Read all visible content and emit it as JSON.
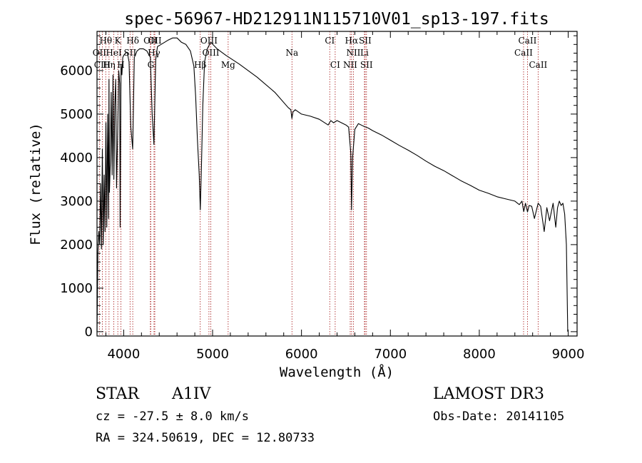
{
  "chart_data": {
    "type": "line",
    "title": "spec-56967-HD212911N115710V01_sp13-197.fits",
    "xlabel": "Wavelength (Å)",
    "ylabel": "Flux (relative)",
    "xlim": [
      3700,
      9100
    ],
    "ylim": [
      -100,
      6900
    ],
    "xticks": [
      4000,
      5000,
      6000,
      7000,
      8000,
      9000
    ],
    "yticks": [
      0,
      1000,
      2000,
      3000,
      4000,
      5000,
      6000
    ],
    "grid": false,
    "series": [
      {
        "name": "flux",
        "x": [
          3700,
          3710,
          3720,
          3730,
          3740,
          3750,
          3760,
          3770,
          3780,
          3790,
          3800,
          3810,
          3820,
          3830,
          3835,
          3840,
          3850,
          3860,
          3870,
          3880,
          3889,
          3900,
          3910,
          3920,
          3933,
          3945,
          3955,
          3960,
          3970,
          3980,
          3990,
          4000,
          4020,
          4040,
          4060,
          4080,
          4101,
          4120,
          4150,
          4180,
          4220,
          4260,
          4300,
          4320,
          4340,
          4360,
          4380,
          4420,
          4460,
          4500,
          4550,
          4600,
          4650,
          4700,
          4750,
          4790,
          4810,
          4830,
          4850,
          4862,
          4875,
          4890,
          4910,
          4940,
          4980,
          5050,
          5150,
          5300,
          5500,
          5700,
          5850,
          5880,
          5892,
          5905,
          5930,
          6000,
          6100,
          6200,
          6300,
          6330,
          6360,
          6400,
          6500,
          6530,
          6555,
          6563,
          6575,
          6600,
          6640,
          6700,
          6750,
          6800,
          6900,
          7000,
          7100,
          7200,
          7300,
          7400,
          7500,
          7600,
          7700,
          7800,
          7900,
          8000,
          8100,
          8200,
          8300,
          8400,
          8450,
          8480,
          8500,
          8520,
          8542,
          8560,
          8590,
          8620,
          8662,
          8690,
          8730,
          8760,
          8790,
          8830,
          8860,
          8880,
          8900,
          8920,
          8940,
          8960,
          8980,
          8995
        ],
        "y": [
          0,
          1800,
          2300,
          2000,
          3400,
          1900,
          4200,
          2000,
          3600,
          2300,
          4800,
          2400,
          5000,
          2600,
          5800,
          3200,
          3900,
          5500,
          3600,
          5900,
          3500,
          5200,
          5800,
          3300,
          4600,
          6000,
          5700,
          2400,
          6150,
          5900,
          6300,
          6350,
          6400,
          6420,
          6200,
          4700,
          4200,
          6300,
          6450,
          6500,
          6500,
          6450,
          6300,
          5000,
          4300,
          6250,
          6550,
          6600,
          6650,
          6700,
          6750,
          6750,
          6650,
          6600,
          6450,
          6100,
          5400,
          4400,
          3600,
          2800,
          3800,
          5200,
          6200,
          6500,
          6650,
          6500,
          6350,
          6150,
          5850,
          5500,
          5150,
          5100,
          4900,
          5050,
          5100,
          5000,
          4950,
          4880,
          4750,
          4850,
          4800,
          4850,
          4750,
          4700,
          4100,
          2800,
          4000,
          4650,
          4780,
          4720,
          4680,
          4620,
          4520,
          4400,
          4280,
          4170,
          4050,
          3920,
          3800,
          3700,
          3580,
          3460,
          3360,
          3250,
          3180,
          3100,
          3050,
          3000,
          2920,
          3000,
          2760,
          2950,
          2750,
          2900,
          2880,
          2600,
          2950,
          2880,
          2300,
          2850,
          2550,
          2950,
          2400,
          2850,
          3000,
          2900,
          2950,
          2700,
          2000,
          0
        ]
      }
    ],
    "lines": [
      {
        "name": "Hθ",
        "wl": 3798,
        "row": 0
      },
      {
        "name": "K",
        "wl": 3934,
        "row": 0
      },
      {
        "name": "Hδ",
        "wl": 4102,
        "row": 0
      },
      {
        "name": "OII",
        "wl": 4300,
        "row": 0
      },
      {
        "name": "OII",
        "wl": 4350,
        "row": 0
      },
      {
        "name": "OIII",
        "wl": 4959,
        "row": 0
      },
      {
        "name": "CI",
        "wl": 6318,
        "row": 0
      },
      {
        "name": "Hα",
        "wl": 6563,
        "row": 0
      },
      {
        "name": "SII",
        "wl": 6716,
        "row": 0
      },
      {
        "name": "CaII",
        "wl": 8542,
        "row": 0
      },
      {
        "name": "OII",
        "wl": 3727,
        "row": 1
      },
      {
        "name": "HeI",
        "wl": 3889,
        "row": 1
      },
      {
        "name": "SII",
        "wl": 4072,
        "row": 1
      },
      {
        "name": "Hγ",
        "wl": 4341,
        "row": 1
      },
      {
        "name": "OIII",
        "wl": 4980,
        "row": 1
      },
      {
        "name": "Na",
        "wl": 5893,
        "row": 1
      },
      {
        "name": "NII",
        "wl": 6584,
        "row": 1
      },
      {
        "name": "Li",
        "wl": 6708,
        "row": 1
      },
      {
        "name": "CaII",
        "wl": 8498,
        "row": 1
      },
      {
        "name": "CIII",
        "wl": 3760,
        "row": 2
      },
      {
        "name": "Hη",
        "wl": 3835,
        "row": 2
      },
      {
        "name": "H",
        "wl": 3969,
        "row": 2
      },
      {
        "name": "G",
        "wl": 4305,
        "row": 2
      },
      {
        "name": "Hβ",
        "wl": 4861,
        "row": 2
      },
      {
        "name": "Mg",
        "wl": 5175,
        "row": 2
      },
      {
        "name": "CI",
        "wl": 6379,
        "row": 2
      },
      {
        "name": "NII",
        "wl": 6548,
        "row": 2
      },
      {
        "name": "SII",
        "wl": 6731,
        "row": 2
      },
      {
        "name": "CaII",
        "wl": 8662,
        "row": 2
      }
    ]
  },
  "info": {
    "class_label": "STAR",
    "subclass": "A1IV",
    "survey": "LAMOST DR3",
    "cz": "cz = -27.5 ± 8.0 km/s",
    "obs_date": "Obs-Date: 20141105",
    "coords": "RA = 324.50619, DEC =  12.80733"
  }
}
